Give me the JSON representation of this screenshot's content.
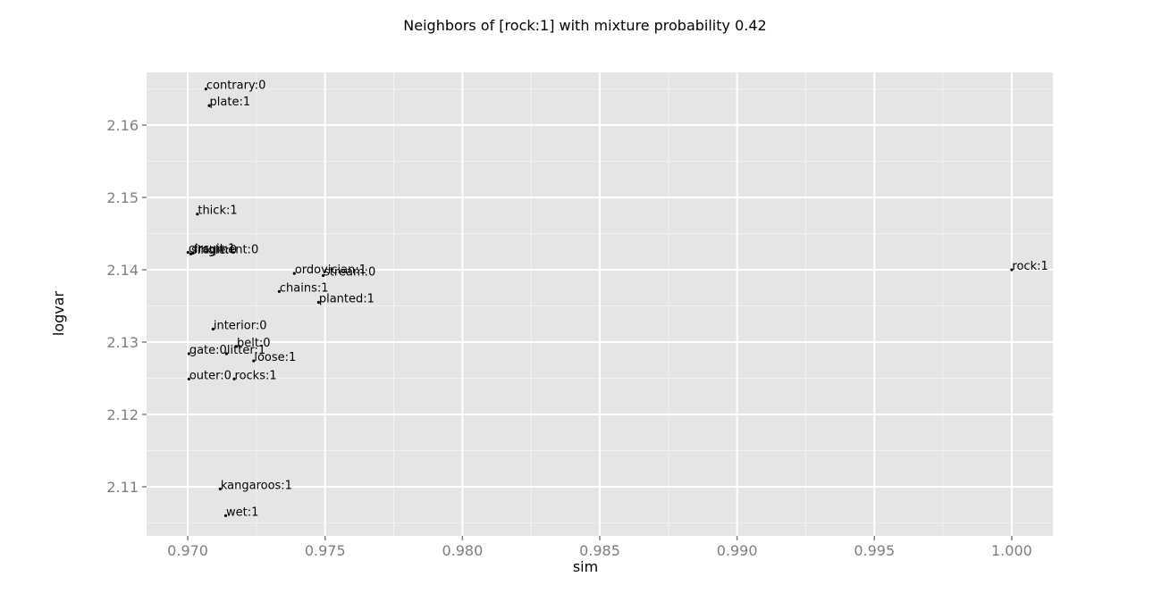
{
  "chart_data": {
    "type": "scatter",
    "title": "Neighbors of [rock:1] with mixture probability 0.42",
    "xlabel": "sim",
    "ylabel": "logvar",
    "xlim": [
      0.9685,
      1.0015
    ],
    "ylim": [
      2.1032,
      2.1673
    ],
    "xticks": [
      0.97,
      0.975,
      0.98,
      0.985,
      0.99,
      0.995,
      1.0
    ],
    "xtick_labels": [
      "0.970",
      "0.975",
      "0.980",
      "0.985",
      "0.990",
      "0.995",
      "1.000"
    ],
    "yticks": [
      2.11,
      2.12,
      2.13,
      2.14,
      2.15,
      2.16
    ],
    "ytick_labels": [
      "2.11",
      "2.12",
      "2.13",
      "2.14",
      "2.15",
      "2.16"
    ],
    "grid": true,
    "background": "#e5e5e5",
    "point_color": "#000000",
    "points": [
      {
        "label": "contrary:0",
        "x": 0.97066,
        "y": 2.165
      },
      {
        "label": "plate:1",
        "x": 0.97078,
        "y": 2.1627
      },
      {
        "label": "thick:1",
        "x": 0.97035,
        "y": 2.1477
      },
      {
        "label": "circuit:1",
        "x": 0.97001,
        "y": 2.1424
      },
      {
        "label": "single:0",
        "x": 0.97011,
        "y": 2.1422
      },
      {
        "label": "fragment:0",
        "x": 0.97019,
        "y": 2.1423
      },
      {
        "label": "ordovician:1",
        "x": 0.97388,
        "y": 2.1395
      },
      {
        "label": "stream:0",
        "x": 0.97493,
        "y": 2.1392
      },
      {
        "label": "rock:1",
        "x": 1.0,
        "y": 2.14
      },
      {
        "label": "chains:1",
        "x": 0.97333,
        "y": 2.137
      },
      {
        "label": "planted:1",
        "x": 0.97476,
        "y": 2.1355
      },
      {
        "label": "interior:0",
        "x": 0.97092,
        "y": 2.1318
      },
      {
        "label": "belt:0",
        "x": 0.97177,
        "y": 2.1294
      },
      {
        "label": "gate:0",
        "x": 0.97004,
        "y": 2.1284
      },
      {
        "label": "litter:1",
        "x": 0.97141,
        "y": 2.1284
      },
      {
        "label": "loose:1",
        "x": 0.9724,
        "y": 2.1274
      },
      {
        "label": "outer:0",
        "x": 0.97004,
        "y": 2.1249
      },
      {
        "label": "rocks:1",
        "x": 0.97169,
        "y": 2.1249
      },
      {
        "label": "kangaroos:1",
        "x": 0.97118,
        "y": 2.1097
      },
      {
        "label": "wet:1",
        "x": 0.97138,
        "y": 2.106
      }
    ]
  }
}
